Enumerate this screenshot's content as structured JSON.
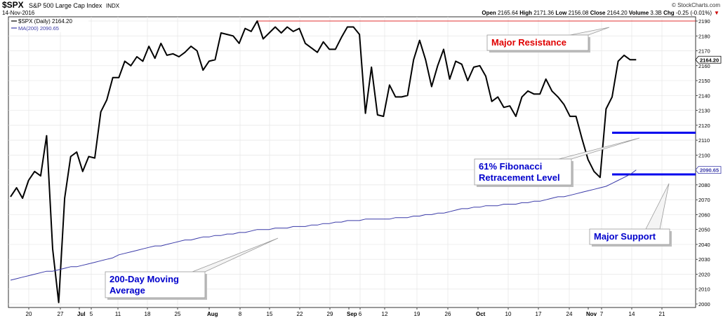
{
  "header": {
    "symbol": "$SPX",
    "name": "S&P 500 Large Cap Index",
    "exchange": "INDX",
    "date": "14-Nov-2016",
    "brand": "© StockCharts.com",
    "stats_parts": [
      {
        "label": "Open",
        "value": "2165.64"
      },
      {
        "label": "High",
        "value": "2171.36"
      },
      {
        "label": "Low",
        "value": "2156.08"
      },
      {
        "label": "Close",
        "value": "2164.20"
      },
      {
        "label": "Volume",
        "value": "3.3B"
      },
      {
        "label": "Chg",
        "value": "-0.25 (-0.01%)"
      }
    ],
    "down_arrow": "▼"
  },
  "legend": {
    "price_label": "$SPX (Daily) 2164.20",
    "ma_label": "MA(200) 2090.65"
  },
  "colors": {
    "price": "#000000",
    "ma": "#3a3aa8",
    "resistance": "#e03030",
    "level": "#0000ee",
    "annotation_red": "#e00000",
    "annotation_blue": "#0000cc",
    "grid": "#e6e6e6",
    "down": "#cc0000"
  },
  "annotations": [
    {
      "id": "resistance",
      "text_lines": [
        "Major Resistance"
      ]
    },
    {
      "id": "fibonacci",
      "text_lines": [
        "61% Fibonacci",
        "Retracement Level"
      ]
    },
    {
      "id": "support",
      "text_lines": [
        "Major Support"
      ]
    },
    {
      "id": "ma",
      "text_lines": [
        "200-Day Moving",
        "Average"
      ]
    }
  ],
  "chart_data": {
    "type": "line",
    "ylim": [
      2000,
      2190
    ],
    "yticks": [
      2000,
      2010,
      2020,
      2030,
      2040,
      2050,
      2060,
      2070,
      2080,
      2090,
      2100,
      2110,
      2120,
      2130,
      2140,
      2150,
      2160,
      2170,
      2180,
      2190
    ],
    "y_axis_position": "right",
    "grid": true,
    "xlabels": [
      "20",
      "27",
      "Jul",
      "5",
      "11",
      "18",
      "25",
      "Aug",
      "8",
      "15",
      "22",
      "29",
      "Sep",
      "6",
      "12",
      "19",
      "26",
      "Oct",
      "10",
      "17",
      "24",
      "Nov",
      "7",
      "14",
      "21"
    ],
    "last_price_tag": "2164.20",
    "last_ma_tag": "2090.65",
    "series": [
      {
        "name": "$SPX (Daily)",
        "values": [
          2072,
          2078,
          2071,
          2083,
          2089,
          2086,
          2113,
          2037,
          2001,
          2071,
          2099,
          2102,
          2089,
          2099,
          2098,
          2129,
          2137,
          2152,
          2152,
          2163,
          2160,
          2166,
          2163,
          2173,
          2165,
          2175,
          2167,
          2168,
          2166,
          2169,
          2173,
          2170,
          2157,
          2163,
          2164,
          2182,
          2181,
          2180,
          2175,
          2185,
          2183,
          2190,
          2178,
          2182,
          2186,
          2182,
          2186,
          2183,
          2185,
          2175,
          2172,
          2169,
          2176,
          2171,
          2171,
          2179,
          2186,
          2186,
          2181,
          2128,
          2159,
          2127,
          2126,
          2147,
          2139,
          2139,
          2140,
          2164,
          2177,
          2164,
          2146,
          2160,
          2171,
          2151,
          2163,
          2161,
          2150,
          2159,
          2160,
          2153,
          2136,
          2139,
          2132,
          2133,
          2126,
          2139,
          2143,
          2141,
          2141,
          2151,
          2143,
          2139,
          2134,
          2126,
          2126,
          2111,
          2097,
          2089,
          2085,
          2131,
          2139,
          2163,
          2167,
          2164,
          2164
        ]
      },
      {
        "name": "MA(200)",
        "values": [
          2016,
          2017,
          2018,
          2019,
          2020,
          2021,
          2022,
          2022,
          2023,
          2024,
          2025,
          2025,
          2026,
          2027,
          2028,
          2029,
          2030,
          2031,
          2033,
          2034,
          2035,
          2036,
          2037,
          2038,
          2039,
          2039,
          2040,
          2041,
          2042,
          2043,
          2043,
          2044,
          2045,
          2045,
          2046,
          2046,
          2047,
          2047,
          2048,
          2048,
          2049,
          2050,
          2050,
          2050,
          2051,
          2051,
          2051,
          2052,
          2052,
          2052,
          2053,
          2053,
          2054,
          2054,
          2055,
          2055,
          2056,
          2056,
          2056,
          2057,
          2057,
          2057,
          2057,
          2057,
          2058,
          2058,
          2058,
          2059,
          2059,
          2060,
          2060,
          2061,
          2061,
          2062,
          2063,
          2064,
          2064,
          2065,
          2065,
          2066,
          2066,
          2066,
          2067,
          2067,
          2067,
          2068,
          2068,
          2069,
          2069,
          2070,
          2071,
          2072,
          2072,
          2073,
          2074,
          2075,
          2076,
          2077,
          2078,
          2079,
          2081,
          2083,
          2085,
          2087,
          2090
        ]
      }
    ],
    "levels": [
      {
        "name": "resistance",
        "value": 2190,
        "start_index": 41,
        "end_index": 121
      },
      {
        "name": "fibonacci",
        "value": 2115,
        "start_index": 100,
        "end_index": 121
      },
      {
        "name": "support",
        "value": 2087,
        "start_index": 100,
        "end_index": 121
      }
    ]
  }
}
